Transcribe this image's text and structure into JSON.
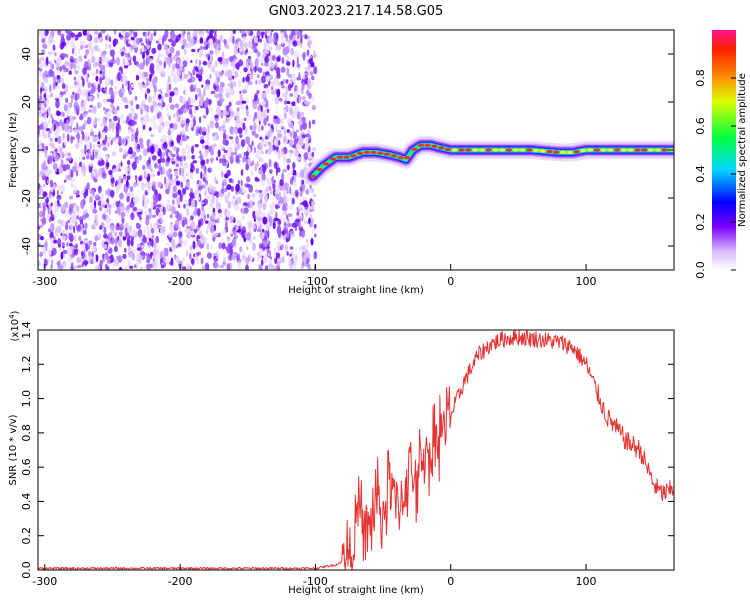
{
  "chart_data": [
    {
      "type": "heatmap",
      "title": "GN03.2023.217.14.58.G05",
      "xlabel": "Height of straight line (km)",
      "ylabel": "Frequency (Hz)",
      "xlim": [
        -305,
        165
      ],
      "ylim": [
        -50,
        50
      ],
      "xticks": [
        -300,
        -200,
        -100,
        0,
        100
      ],
      "yticks": [
        -40,
        -20,
        0,
        20,
        40
      ],
      "noise_region_x": [
        -305,
        -100
      ],
      "ridge": {
        "x": [
          -102,
          -95,
          -85,
          -75,
          -65,
          -55,
          -45,
          -38,
          -33,
          -28,
          -22,
          -15,
          -8,
          0,
          20,
          40,
          60,
          80,
          90,
          100,
          120,
          140,
          165
        ],
        "y": [
          -11,
          -7,
          -3,
          -3,
          -1,
          -1,
          -2,
          -3,
          -4,
          0,
          2,
          2,
          1,
          0,
          0,
          0,
          0,
          -1,
          -1,
          0,
          0,
          0,
          0
        ]
      },
      "colorbar": {
        "label": "Normalized spectral amplitude",
        "range": [
          0,
          1
        ],
        "ticks": [
          0.0,
          0.2,
          0.4,
          0.6,
          0.8
        ],
        "tick_labels": [
          "0.0",
          "0.2",
          "0.4",
          "0.6",
          "0.8"
        ]
      }
    },
    {
      "type": "line",
      "xlabel": "Height of straight line (km)",
      "ylabel": "SNR (10 * v/v)",
      "y_multiplier": "(x10",
      "y_multiplier_exp": "4",
      "y_multiplier_close": ")",
      "xlim": [
        -305,
        165
      ],
      "ylim": [
        0,
        1.4
      ],
      "xticks": [
        -300,
        -200,
        -100,
        0,
        100
      ],
      "yticks": [
        0.0,
        0.2,
        0.4,
        0.6,
        0.8,
        1.0,
        1.2,
        1.4
      ],
      "ytick_labels": [
        "0.0",
        "0.2",
        "0.4",
        "0.6",
        "0.8",
        "1.0",
        "1.2",
        "1.4"
      ],
      "color": "#e83232",
      "series": [
        {
          "x": [
            -305,
            -200,
            -100,
            -85,
            -80,
            -75,
            -72,
            -68,
            -65,
            -60,
            -55,
            -50,
            -45,
            -40,
            -35,
            -30,
            -25,
            -20,
            -15,
            -10,
            -5,
            0,
            5,
            10,
            20,
            30,
            40,
            50,
            60,
            70,
            80,
            90,
            95,
            100,
            105,
            110,
            115,
            120,
            125,
            130,
            140,
            145,
            150,
            155,
            160,
            165
          ],
          "y": [
            0.01,
            0.01,
            0.01,
            0.03,
            0.05,
            0.1,
            0.2,
            0.35,
            0.25,
            0.2,
            0.45,
            0.3,
            0.55,
            0.35,
            0.45,
            0.6,
            0.5,
            0.7,
            0.65,
            0.8,
            0.85,
            0.9,
            1.0,
            1.1,
            1.25,
            1.32,
            1.35,
            1.36,
            1.35,
            1.34,
            1.33,
            1.3,
            1.25,
            1.2,
            1.1,
            1.0,
            0.9,
            0.85,
            0.8,
            0.75,
            0.7,
            0.6,
            0.5,
            0.45,
            0.45,
            0.48
          ]
        }
      ]
    }
  ]
}
